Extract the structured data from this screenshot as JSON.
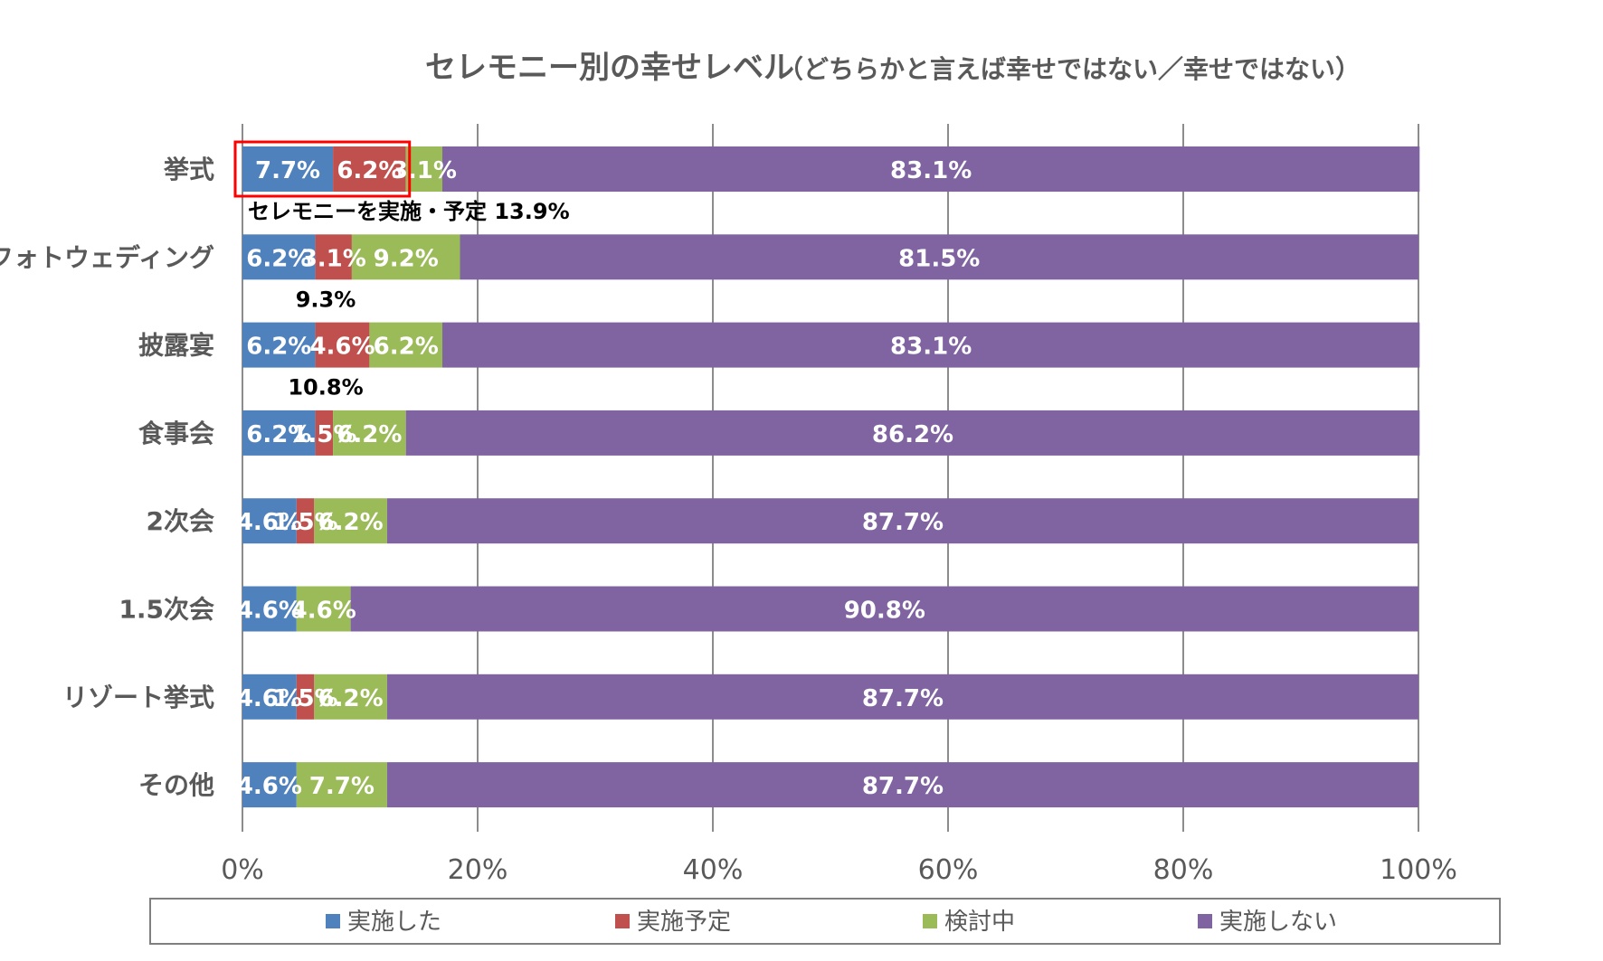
{
  "chart_data": {
    "type": "bar",
    "orientation": "horizontal",
    "stacked": true,
    "title": "セレモニー別の幸せレベル",
    "subtitle": "（どちらかと言えば幸せではない／幸せではない）",
    "categories": [
      "挙式",
      "フォトウェディング",
      "披露宴",
      "食事会",
      "2次会",
      "1.5次会",
      "リゾート挙式",
      "その他"
    ],
    "series": [
      {
        "name": "実施した",
        "color": "#4F81BD",
        "values": [
          7.7,
          6.2,
          6.2,
          6.2,
          4.6,
          4.6,
          4.6,
          4.6
        ]
      },
      {
        "name": "実施予定",
        "color": "#C0504D",
        "values": [
          6.2,
          3.1,
          4.6,
          1.5,
          1.5,
          0,
          1.5,
          0
        ]
      },
      {
        "name": "検討中",
        "color": "#9BBB59",
        "values": [
          3.1,
          9.2,
          6.2,
          6.2,
          6.2,
          4.6,
          6.2,
          7.7
        ]
      },
      {
        "name": "実施しない",
        "color": "#8064A2",
        "values": [
          83.1,
          81.5,
          83.1,
          86.2,
          87.7,
          90.8,
          87.7,
          87.7
        ]
      }
    ],
    "data_labels": [
      [
        "7.7%",
        "6.2%",
        "3.1%",
        "83.1%"
      ],
      [
        "6.2%",
        "3.1%",
        "9.2%",
        "81.5%"
      ],
      [
        "6.2%",
        "4.6%",
        "6.2%",
        "83.1%"
      ],
      [
        "6.2%",
        "1.5%",
        "6.2%",
        "86.2%"
      ],
      [
        "4.6%",
        "1.5%",
        "6.2%",
        "87.7%"
      ],
      [
        "4.6%",
        "",
        "4.6%",
        "90.8%"
      ],
      [
        "4.6%",
        "1.5%",
        "6.2%",
        "87.7%"
      ],
      [
        "4.6%",
        "",
        "7.7%",
        "87.7%"
      ]
    ],
    "xlim": [
      0,
      100
    ],
    "x_ticks": [
      "0%",
      "20%",
      "40%",
      "60%",
      "80%",
      "100%"
    ],
    "x_tick_values": [
      0,
      20,
      40,
      60,
      80,
      100
    ],
    "grid": true,
    "legend_position": "bottom",
    "annotations": [
      {
        "category": "挙式",
        "text": "セレモニーを実施・予定",
        "value_text": "13.9%",
        "highlight": true
      },
      {
        "category": "フォトウェディング",
        "text": "",
        "value_text": "9.3%"
      },
      {
        "category": "披露宴",
        "text": "",
        "value_text": "10.8%"
      }
    ]
  }
}
